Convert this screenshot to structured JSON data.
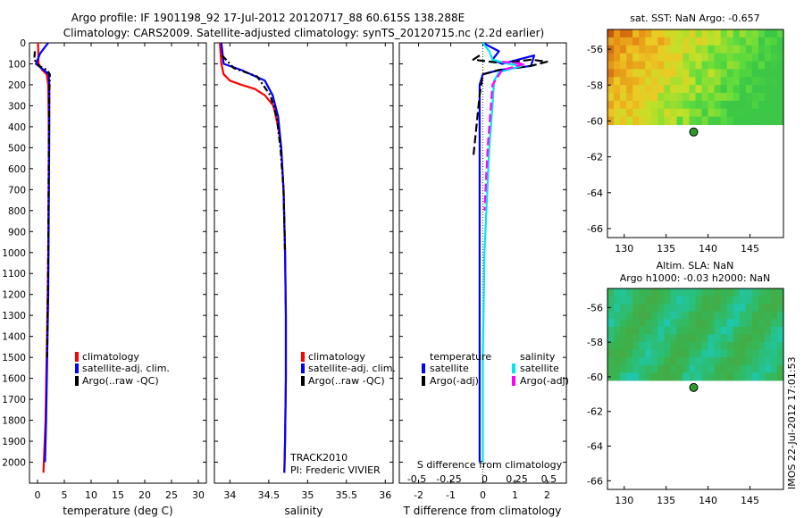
{
  "header": {
    "line1": "Argo profile: IF 1901198_92 17-Jul-2012 20120717_88 60.615S 138.288E",
    "line2": "Climatology: CARS2009. Satellite-adjusted climatology: synTS_20120715.nc (2.2d earlier)"
  },
  "footer": {
    "stamp": "IMOS 22-Jul-2012 17:01:53"
  },
  "colors": {
    "climatology": "#ff0000",
    "satellite_adj": "#0000ff",
    "argo": "#000000",
    "salinity_satellite": "#00e5ee",
    "salinity_argo": "#ff00ff",
    "float_marker": "#2e9b2e"
  },
  "chart_data": [
    {
      "type": "line",
      "panel": "temperature",
      "xlabel": "temperature (deg C)",
      "ylabel": "",
      "xlim": [
        -1.5,
        31.5
      ],
      "ylim": [
        2100,
        0
      ],
      "xticks": [
        0,
        5,
        10,
        15,
        20,
        25,
        30
      ],
      "yticks": [
        0,
        100,
        200,
        300,
        400,
        500,
        600,
        700,
        800,
        900,
        1000,
        1100,
        1200,
        1300,
        1400,
        1500,
        1600,
        1700,
        1800,
        1900,
        2000
      ],
      "legend": [
        "climatology",
        "satellite-adj. clim.",
        "Argo(..raw -QC)"
      ],
      "series": [
        {
          "name": "climatology",
          "style": "solid",
          "x": [
            0.1,
            0.2,
            0.9,
            1.7,
            2.0,
            2.1,
            2.1,
            2.0,
            1.9,
            1.7,
            1.5,
            1.1
          ],
          "y": [
            0,
            100,
            130,
            150,
            200,
            400,
            600,
            1000,
            1200,
            1500,
            1800,
            2050
          ]
        },
        {
          "name": "satellite-adj. clim.",
          "style": "solid",
          "x": [
            2.0,
            0.5,
            -0.3,
            1.2,
            2.1,
            2.2,
            2.2,
            2.1,
            2.0,
            1.8,
            1.6,
            1.4
          ],
          "y": [
            0,
            50,
            100,
            130,
            150,
            200,
            400,
            800,
            1200,
            1500,
            1800,
            2000
          ]
        },
        {
          "name": "Argo(..raw -QC)",
          "style": "dashdot",
          "x": [
            -0.5,
            -0.6,
            0.3,
            1.8,
            2.3,
            2.2,
            2.1,
            2.0,
            1.8
          ],
          "y": [
            40,
            80,
            110,
            130,
            150,
            250,
            500,
            1000,
            1500
          ]
        }
      ]
    },
    {
      "type": "line",
      "panel": "salinity",
      "xlabel": "salinity",
      "ylabel": "",
      "xlim": [
        33.8,
        36.1
      ],
      "ylim": [
        2100,
        0
      ],
      "xticks": [
        34,
        34.5,
        35,
        35.5,
        36
      ],
      "legend": [
        "climatology",
        "satellite-adj. clim.",
        "Argo(..raw -QC)"
      ],
      "annotations": [
        "TRACK2010",
        "PI: Frederic VIVIER"
      ],
      "series": [
        {
          "name": "climatology",
          "style": "solid",
          "x": [
            33.87,
            33.89,
            33.92,
            34.0,
            34.15,
            34.32,
            34.45,
            34.56,
            34.62,
            34.66,
            34.69,
            34.71,
            34.72,
            34.72,
            34.71,
            34.7
          ],
          "y": [
            0,
            100,
            150,
            180,
            200,
            220,
            250,
            300,
            400,
            500,
            700,
            1000,
            1300,
            1600,
            1900,
            2050
          ]
        },
        {
          "name": "satellite-adj. clim.",
          "style": "solid",
          "x": [
            33.89,
            33.92,
            34.15,
            34.45,
            34.55,
            34.62,
            34.66,
            34.69,
            34.71,
            34.72,
            34.72,
            34.71,
            34.7
          ],
          "y": [
            0,
            100,
            130,
            180,
            250,
            350,
            500,
            700,
            1000,
            1300,
            1600,
            1900,
            2050
          ]
        },
        {
          "name": "Argo(..raw -QC)",
          "style": "dashdot",
          "x": [
            33.9,
            34.05,
            34.35,
            34.52,
            34.6,
            34.65,
            34.69,
            34.71
          ],
          "y": [
            60,
            120,
            160,
            250,
            350,
            500,
            700,
            1000
          ]
        }
      ]
    },
    {
      "type": "line",
      "panel": "difference",
      "xlabel": "T difference from climatology",
      "top_xlabel": "S difference from climatology",
      "xlim": [
        -2.6,
        2.6
      ],
      "ylim": [
        2100,
        0
      ],
      "xticks": [
        -2,
        -1,
        0,
        1,
        2
      ],
      "top_xtick_labels": [
        "-0.5",
        "-0.25",
        "0",
        "0.25",
        "0.5"
      ],
      "legend_groups": [
        "temperature",
        "salinity"
      ],
      "legend": [
        "satellite",
        "Argo(-adj)",
        "satellite",
        "Argo(-adj)"
      ],
      "series": [
        {
          "name": "temperature satellite",
          "style": "solid",
          "x": [
            0.0,
            0.5,
            0.3,
            0.6,
            1.6,
            1.5,
            0.5,
            0.0,
            -0.1,
            -0.1,
            -0.1,
            -0.1
          ],
          "y": [
            0,
            40,
            80,
            100,
            60,
            110,
            130,
            150,
            200,
            500,
            1000,
            2000
          ]
        },
        {
          "name": "temperature Argo(-adj)",
          "style": "dashed",
          "x": [
            -0.1,
            -0.3,
            0.5,
            1.0,
            1.5,
            2.0,
            1.5,
            0.5,
            0.0,
            -0.1,
            -0.2,
            -0.3
          ],
          "y": [
            60,
            80,
            95,
            90,
            80,
            90,
            110,
            130,
            150,
            250,
            400,
            550
          ]
        },
        {
          "name": "salinity satellite",
          "style": "solid",
          "x": [
            0.0,
            0.2,
            0.3,
            0.8,
            1.2,
            0.5,
            0.35,
            0.3,
            0.2,
            0.05,
            0.0,
            0.0
          ],
          "y": [
            0,
            40,
            80,
            100,
            110,
            140,
            180,
            300,
            500,
            1000,
            1500,
            2000
          ]
        },
        {
          "name": "salinity Argo(-adj)",
          "style": "dashed",
          "x": [
            0.6,
            1.3,
            0.6,
            0.3,
            0.25,
            0.15,
            0.05
          ],
          "y": [
            90,
            100,
            130,
            200,
            300,
            500,
            800
          ]
        }
      ]
    },
    {
      "type": "heatmap",
      "panel": "sst-map",
      "title": "sat. SST: NaN Argo: -0.657",
      "xlim": [
        128,
        149
      ],
      "ylim": [
        -66.5,
        -54.9
      ],
      "xticks": [
        130,
        135,
        140,
        145
      ],
      "yticks": [
        -56,
        -58,
        -60,
        -62,
        -64,
        -66
      ],
      "data_extent_lat": [
        -54.9,
        -60.2
      ],
      "float_position": {
        "lon": 138.288,
        "lat": -60.615
      }
    },
    {
      "type": "heatmap",
      "panel": "sla-map",
      "title": "Altim. SLA: NaN",
      "subtitle": "Argo h1000: -0.03 h2000: NaN",
      "xlim": [
        128,
        149
      ],
      "ylim": [
        -66.5,
        -54.9
      ],
      "xticks": [
        130,
        135,
        140,
        145
      ],
      "yticks": [
        -56,
        -58,
        -60,
        -62,
        -64,
        -66
      ],
      "data_extent_lat": [
        -54.9,
        -60.2
      ],
      "float_position": {
        "lon": 138.288,
        "lat": -60.615
      }
    }
  ]
}
